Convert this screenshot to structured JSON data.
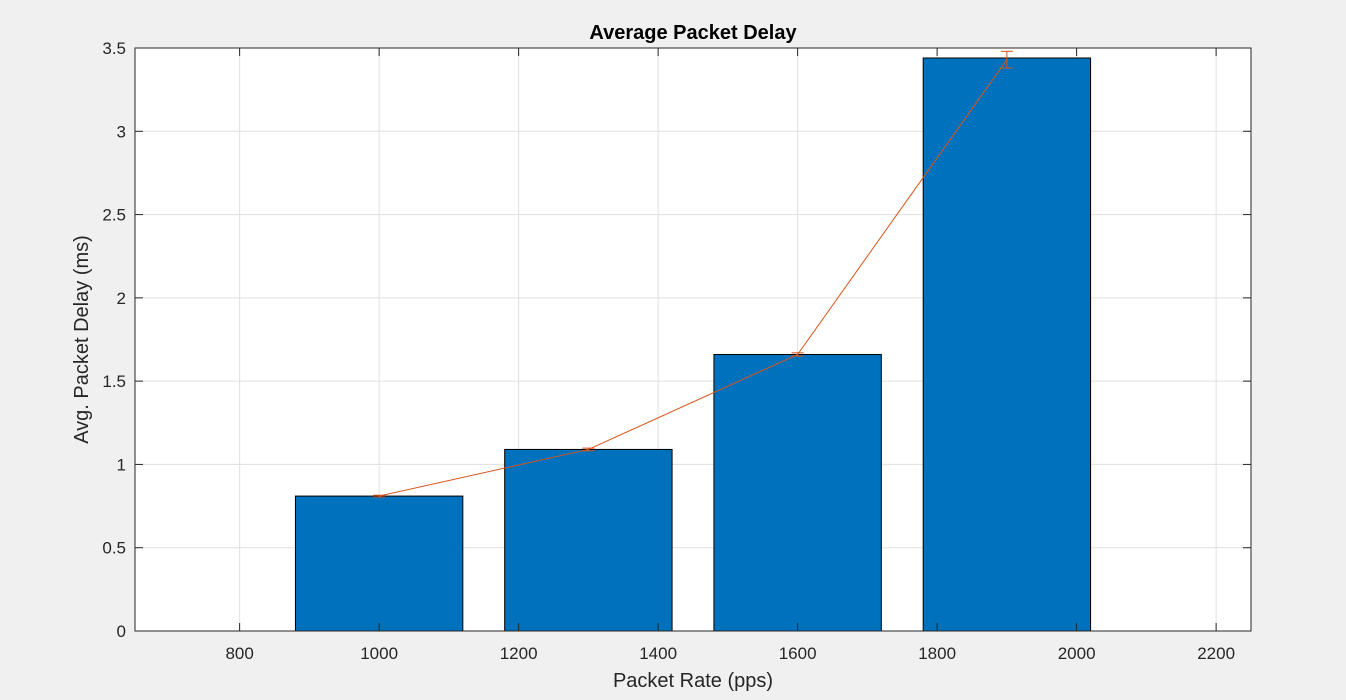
{
  "chart_data": {
    "type": "bar",
    "title": "Average Packet Delay",
    "xlabel": "Packet Rate (pps)",
    "ylabel": "Avg. Packet Delay (ms)",
    "xlim": [
      650,
      2250
    ],
    "ylim": [
      0,
      3.5
    ],
    "xticks": [
      800,
      1000,
      1200,
      1400,
      1600,
      1800,
      2000,
      2200
    ],
    "yticks": [
      0,
      0.5,
      1,
      1.5,
      2,
      2.5,
      3,
      3.5
    ],
    "xtick_labels": [
      "800",
      "1000",
      "1200",
      "1400",
      "1600",
      "1800",
      "2000",
      "2200"
    ],
    "ytick_labels": [
      "0",
      "0.5",
      "1",
      "1.5",
      "2",
      "2.5",
      "3",
      "3.5"
    ],
    "grid": true,
    "bar_width": 240,
    "x": [
      1000,
      1300,
      1600,
      1900
    ],
    "series": [
      {
        "kind": "bar",
        "values": [
          0.81,
          1.09,
          1.66,
          3.44
        ],
        "color": "#0072bd"
      },
      {
        "kind": "errorbar-line",
        "values": [
          0.81,
          1.09,
          1.66,
          3.43
        ],
        "errors": [
          0.005,
          0.008,
          0.01,
          0.05
        ],
        "color": "#d95319"
      }
    ],
    "colors": {
      "figure_background": "#f0f0f0",
      "axes_background": "#ffffff",
      "grid": "#e0e0e0",
      "axis": "#262626",
      "bar_edge": "#000000"
    }
  }
}
